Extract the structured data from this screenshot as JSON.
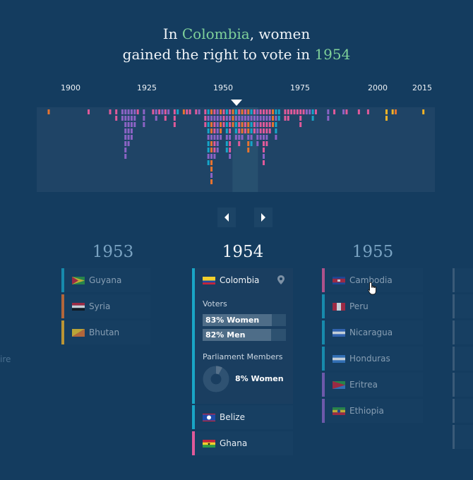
{
  "headline": {
    "pre": "In ",
    "country": "Colombia",
    "mid": ", women",
    "line2": "gained the right to vote in ",
    "year": "1954"
  },
  "timeline": {
    "year_labels": [
      "1900",
      "1925",
      "1950",
      "1975",
      "2000",
      "2015"
    ],
    "selected_year": 1954
  },
  "chart_data": {
    "type": "bar",
    "description_note": "",
    "x_range": [
      1893,
      2016
    ],
    "xticks": [
      1900,
      1925,
      1950,
      1975,
      2000,
      2015
    ],
    "colors": {
      "pink": "#e05a9a",
      "purple": "#8b63c4",
      "orange": "#e7742f",
      "teal": "#17a5c8",
      "yellow": "#f3b327"
    },
    "years": [
      1893,
      1906,
      1913,
      1915,
      1917,
      1918,
      1919,
      1920,
      1921,
      1922,
      1924,
      1927,
      1928,
      1929,
      1930,
      1931,
      1932,
      1934,
      1935,
      1937,
      1938,
      1939,
      1941,
      1942,
      1944,
      1945,
      1946,
      1947,
      1948,
      1949,
      1950,
      1951,
      1952,
      1953,
      1954,
      1955,
      1956,
      1957,
      1958,
      1959,
      1960,
      1961,
      1962,
      1963,
      1964,
      1965,
      1966,
      1967,
      1968,
      1970,
      1971,
      1972,
      1973,
      1974,
      1975,
      1976,
      1977,
      1978,
      1979,
      1980,
      1984,
      1986,
      1989,
      1990,
      1994,
      1997,
      2003,
      2005,
      2006,
      2015
    ],
    "counts": [
      1,
      1,
      1,
      2,
      2,
      8,
      6,
      5,
      3,
      1,
      3,
      1,
      2,
      1,
      1,
      2,
      1,
      3,
      1,
      1,
      1,
      1,
      1,
      1,
      3,
      9,
      12,
      8,
      7,
      5,
      3,
      7,
      8,
      3,
      5,
      6,
      5,
      4,
      7,
      6,
      4,
      6,
      5,
      9,
      6,
      4,
      3,
      5,
      2,
      2,
      2,
      1,
      1,
      1,
      3,
      1,
      1,
      1,
      2,
      1,
      2,
      1,
      1,
      1,
      1,
      1,
      2,
      1,
      1,
      1
    ],
    "palette": [
      "orange",
      "pink",
      "pink",
      "pink",
      "purple",
      "purple",
      "purple",
      "purple",
      "purple",
      "pink",
      "purple",
      "pink",
      "purple",
      "pink",
      "purple",
      "pink",
      "purple",
      "pink",
      "teal",
      "orange",
      "pink",
      "pink",
      "pink",
      "purple",
      "pink",
      "teal",
      "orange",
      "pink",
      "purple",
      "orange",
      "pink",
      "teal",
      "pink",
      "orange",
      "teal",
      "pink",
      "orange",
      "pink",
      "orange",
      "teal",
      "pink",
      "purple",
      "pink",
      "pink",
      "pink",
      "pink",
      "orange",
      "teal",
      "teal",
      "pink",
      "pink",
      "pink",
      "pink",
      "pink",
      "pink",
      "pink",
      "purple",
      "purple",
      "teal",
      "pink",
      "purple",
      "pink",
      "purple",
      "pink",
      "pink",
      "pink",
      "yellow",
      "yellow",
      "orange",
      "yellow"
    ]
  },
  "nav": {
    "prev_icon": "chevron-left-icon",
    "next_icon": "chevron-right-icon"
  },
  "columns": [
    {
      "year": "1953",
      "countries": [
        {
          "name": "Guyana",
          "color": "#19a5c6",
          "flag": "guyana"
        },
        {
          "name": "Syria",
          "color": "#e7742f",
          "flag": "syria"
        },
        {
          "name": "Bhutan",
          "color": "#f3b327",
          "flag": "bhutan"
        }
      ]
    },
    {
      "year": "1954",
      "expanded": {
        "name": "Colombia",
        "color": "#19a5c6",
        "voters_label": "Voters",
        "women_voters": "83% Women",
        "women_voters_pct": 83,
        "men_voters": "82% Men",
        "men_voters_pct": 82,
        "parliament_label": "Parliament Members",
        "parliament_women": "8% Women",
        "parliament_women_pct": 8
      },
      "countries": [
        {
          "name": "Belize",
          "color": "#19a5c6",
          "flag": "belize"
        },
        {
          "name": "Ghana",
          "color": "#e05a9a",
          "flag": "ghana"
        }
      ]
    },
    {
      "year": "1955",
      "countries": [
        {
          "name": "Cambodia",
          "color": "#e05a9a",
          "flag": "cambodia"
        },
        {
          "name": "Peru",
          "color": "#19a5c6",
          "flag": "peru"
        },
        {
          "name": "Nicaragua",
          "color": "#19a5c6",
          "flag": "nicaragua"
        },
        {
          "name": "Honduras",
          "color": "#19a5c6",
          "flag": "honduras"
        },
        {
          "name": "Eritrea",
          "color": "#8b63c4",
          "flag": "eritrea"
        },
        {
          "name": "Ethiopia",
          "color": "#8b63c4",
          "flag": "ethiopia"
        }
      ]
    }
  ],
  "ghost_text": "ire"
}
